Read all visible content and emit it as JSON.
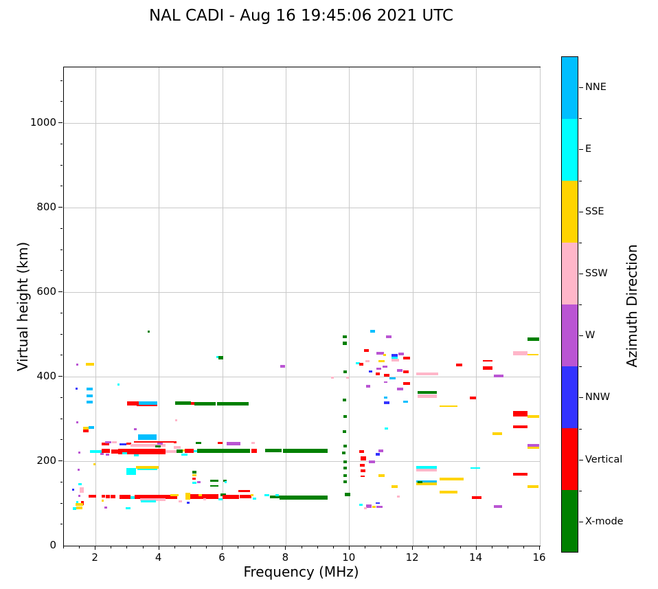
{
  "figure": {
    "title": "NAL CADI - Aug 16 19:45:06 2021 UTC"
  },
  "chart_data": {
    "type": "scatter",
    "title": "NAL CADI - Aug 16 19:45:06 2021 UTC",
    "xlabel": "Frequency (MHz)",
    "ylabel": "Virtual height (km)",
    "xlim": [
      1,
      16
    ],
    "ylim": [
      0,
      1131
    ],
    "xticks": [
      2,
      4,
      6,
      8,
      10,
      12,
      14,
      16
    ],
    "yticks": [
      0,
      200,
      400,
      600,
      800,
      1000
    ],
    "x_minor_step": 0.5,
    "y_minor_step": 50,
    "grid": true,
    "grid_color": "#c9c9c9",
    "colors": {
      "nne": "#00BFFF",
      "e": "#00FFFF",
      "sse": "#FFD400",
      "ssw": "#FFB6C9",
      "w": "#BA55D3",
      "nnw": "#3333FF",
      "v": "#FF0000",
      "x": "#008000"
    },
    "colorbar": {
      "label": "Azimuth Direction",
      "categories": [
        {
          "label": "NNE",
          "key": "nne",
          "color": "#00BFFF"
        },
        {
          "label": "E",
          "key": "e",
          "color": "#00FFFF"
        },
        {
          "label": "SSE",
          "key": "sse",
          "color": "#FFD400"
        },
        {
          "label": "SSW",
          "key": "ssw",
          "color": "#FFB6C9"
        },
        {
          "label": "W",
          "key": "w",
          "color": "#BA55D3"
        },
        {
          "label": "NNW",
          "key": "nnw",
          "color": "#3333FF"
        },
        {
          "label": "Vertical",
          "key": "v",
          "color": "#FF0000"
        },
        {
          "label": "X-mode",
          "key": "x",
          "color": "#008000"
        }
      ]
    },
    "points_format": [
      "freq_start_MHz",
      "freq_end_MHz",
      "virtual_height_km",
      "azimuth_key",
      "thickness_px"
    ],
    "points": [
      [
        1.4,
        1.46,
        428,
        "w",
        3
      ],
      [
        1.7,
        1.95,
        429,
        "sse",
        4
      ],
      [
        1.37,
        1.43,
        371,
        "nnw",
        3
      ],
      [
        1.72,
        1.92,
        370,
        "nne",
        4
      ],
      [
        1.72,
        1.92,
        355,
        "nne",
        4
      ],
      [
        1.72,
        1.92,
        340,
        "nne",
        4
      ],
      [
        1.4,
        1.46,
        292,
        "w",
        3
      ],
      [
        1.6,
        1.78,
        278,
        "sse",
        4
      ],
      [
        1.6,
        1.78,
        272,
        "v",
        4
      ],
      [
        1.78,
        1.96,
        280,
        "nne",
        4
      ],
      [
        1.46,
        1.52,
        221,
        "w",
        3
      ],
      [
        1.92,
        1.98,
        193,
        "sse",
        3
      ],
      [
        1.43,
        1.5,
        180,
        "w",
        3
      ],
      [
        1.46,
        1.56,
        146,
        "e",
        3
      ],
      [
        1.26,
        1.33,
        133,
        "nnw",
        3
      ],
      [
        1.5,
        1.62,
        131,
        "ssw",
        8
      ],
      [
        1.55,
        1.63,
        101,
        "v",
        6
      ],
      [
        1.36,
        1.6,
        97,
        "sse",
        4
      ],
      [
        1.4,
        1.58,
        90,
        "sse",
        4
      ],
      [
        1.28,
        1.4,
        88,
        "e",
        4
      ],
      [
        1.46,
        1.52,
        118,
        "w",
        3
      ],
      [
        1.38,
        1.46,
        104,
        "e",
        3
      ],
      [
        1.78,
        2.02,
        117,
        "v",
        4
      ],
      [
        2.18,
        2.3,
        117,
        "v",
        4
      ],
      [
        2.33,
        2.44,
        117,
        "v",
        5
      ],
      [
        2.47,
        2.62,
        116,
        "v",
        5
      ],
      [
        2.2,
        2.26,
        107,
        "sse",
        3
      ],
      [
        2.28,
        2.36,
        90,
        "w",
        3
      ],
      [
        2.75,
        3.1,
        116,
        "v",
        6
      ],
      [
        2.95,
        3.1,
        89,
        "e",
        3
      ],
      [
        3.1,
        3.24,
        114,
        "e",
        4
      ],
      [
        3.24,
        4.2,
        116,
        "v",
        6
      ],
      [
        3.4,
        4.2,
        109,
        "ssw",
        4
      ],
      [
        3.42,
        3.9,
        105,
        "e",
        3
      ],
      [
        4.2,
        4.58,
        115,
        "v",
        6
      ],
      [
        4.35,
        4.62,
        120,
        "sse",
        3
      ],
      [
        4.62,
        4.72,
        105,
        "ssw",
        3
      ],
      [
        4.84,
        4.98,
        117,
        "sse",
        10
      ],
      [
        4.88,
        4.96,
        102,
        "nnw",
        3
      ],
      [
        4.98,
        5.88,
        116,
        "v",
        7
      ],
      [
        5.25,
        5.36,
        120,
        "sse",
        3
      ],
      [
        5.4,
        5.48,
        109,
        "ssw",
        3
      ],
      [
        5.88,
        6.0,
        110,
        "e",
        3
      ],
      [
        5.94,
        6.1,
        120,
        "x",
        4
      ],
      [
        6.0,
        6.52,
        116,
        "v",
        6
      ],
      [
        6.55,
        6.9,
        116,
        "v",
        5
      ],
      [
        6.5,
        6.86,
        129,
        "v",
        3
      ],
      [
        6.88,
        6.98,
        120,
        "sse",
        3
      ],
      [
        6.95,
        7.06,
        112,
        "e",
        3
      ],
      [
        7.32,
        7.48,
        119,
        "e",
        3
      ],
      [
        7.5,
        7.9,
        115,
        "x",
        4
      ],
      [
        7.67,
        7.78,
        120,
        "e",
        3
      ],
      [
        7.8,
        9.32,
        114,
        "x",
        6
      ],
      [
        1.83,
        2.18,
        222,
        "e",
        4
      ],
      [
        2.2,
        2.46,
        224,
        "v",
        6
      ],
      [
        2.5,
        2.72,
        223,
        "v",
        6
      ],
      [
        2.72,
        4.2,
        223,
        "v",
        8
      ],
      [
        2.85,
        3.0,
        219,
        "e",
        3
      ],
      [
        4.2,
        4.62,
        222,
        "ssw",
        4
      ],
      [
        2.15,
        2.25,
        217,
        "w",
        3
      ],
      [
        2.33,
        2.42,
        216,
        "w",
        3
      ],
      [
        3.2,
        3.35,
        214,
        "e",
        3
      ],
      [
        4.7,
        4.9,
        216,
        "e",
        3
      ],
      [
        4.47,
        4.67,
        232,
        "ssw",
        4
      ],
      [
        4.47,
        4.55,
        245,
        "v",
        3
      ],
      [
        4.55,
        4.74,
        224,
        "x",
        5
      ],
      [
        4.74,
        4.8,
        225,
        "sse",
        3
      ],
      [
        4.8,
        5.1,
        224,
        "v",
        6
      ],
      [
        5.1,
        5.2,
        224,
        "e",
        3
      ],
      [
        5.2,
        5.8,
        224,
        "x",
        6
      ],
      [
        5.8,
        6.86,
        224,
        "x",
        6
      ],
      [
        6.9,
        7.08,
        225,
        "v",
        6
      ],
      [
        7.35,
        7.86,
        225,
        "x",
        5
      ],
      [
        7.9,
        9.32,
        224,
        "x",
        6
      ],
      [
        2.2,
        2.42,
        240,
        "v",
        4
      ],
      [
        2.3,
        2.5,
        244,
        "w",
        3
      ],
      [
        2.52,
        2.66,
        245,
        "ssw",
        3
      ],
      [
        2.76,
        2.96,
        240,
        "nnw",
        3
      ],
      [
        2.96,
        3.12,
        241,
        "v",
        3
      ],
      [
        3.1,
        4.2,
        238,
        "ssw",
        4
      ],
      [
        3.95,
        4.12,
        241,
        "w",
        3
      ],
      [
        3.88,
        4.05,
        235,
        "x",
        3
      ],
      [
        5.16,
        5.32,
        243,
        "x",
        3
      ],
      [
        5.84,
        6.0,
        243,
        "v",
        3
      ],
      [
        6.14,
        6.56,
        241,
        "w",
        5
      ],
      [
        6.9,
        7.02,
        243,
        "ssw",
        3
      ],
      [
        3.34,
        3.92,
        257,
        "nne",
        8
      ],
      [
        3.2,
        4.5,
        246,
        "v",
        2
      ],
      [
        3.2,
        3.3,
        275,
        "w",
        3
      ],
      [
        4.5,
        4.58,
        296,
        "ssw",
        3
      ],
      [
        3.0,
        3.35,
        336,
        "v",
        6
      ],
      [
        3.35,
        3.95,
        336,
        "nne",
        6
      ],
      [
        3.3,
        3.95,
        331,
        "v",
        2
      ],
      [
        4.5,
        5.0,
        337,
        "x",
        5
      ],
      [
        5.0,
        5.12,
        337,
        "v",
        4
      ],
      [
        5.12,
        5.78,
        336,
        "x",
        5
      ],
      [
        5.82,
        6.2,
        336,
        "x",
        5
      ],
      [
        6.2,
        6.82,
        335,
        "x",
        5
      ],
      [
        2.68,
        2.75,
        382,
        "e",
        3
      ],
      [
        3.63,
        3.71,
        507,
        "x",
        3
      ],
      [
        2.96,
        3.28,
        176,
        "e",
        10
      ],
      [
        3.28,
        3.98,
        186,
        "sse",
        4
      ],
      [
        3.32,
        3.95,
        181,
        "e",
        2
      ],
      [
        5.05,
        5.18,
        174,
        "x",
        4
      ],
      [
        5.05,
        5.18,
        166,
        "sse",
        3
      ],
      [
        5.05,
        5.16,
        159,
        "v",
        3
      ],
      [
        5.05,
        5.18,
        149,
        "e",
        3
      ],
      [
        5.2,
        5.3,
        151,
        "w",
        3
      ],
      [
        5.6,
        5.88,
        154,
        "x",
        3
      ],
      [
        6.02,
        6.12,
        154,
        "x",
        3
      ],
      [
        6.06,
        6.14,
        150,
        "e",
        3
      ],
      [
        5.6,
        5.88,
        142,
        "x",
        2
      ],
      [
        5.8,
        5.87,
        446,
        "e",
        3
      ],
      [
        5.87,
        6.03,
        445,
        "x",
        5
      ],
      [
        7.82,
        7.96,
        425,
        "w",
        4
      ],
      [
        9.78,
        9.92,
        494,
        "x",
        4
      ],
      [
        9.78,
        9.92,
        479,
        "x",
        5
      ],
      [
        9.8,
        9.92,
        412,
        "x",
        4
      ],
      [
        9.9,
        9.99,
        398,
        "ssw",
        3
      ],
      [
        9.42,
        9.5,
        398,
        "ssw",
        3
      ],
      [
        9.78,
        9.9,
        345,
        "x",
        4
      ],
      [
        9.8,
        9.92,
        305,
        "x",
        4
      ],
      [
        9.78,
        9.9,
        270,
        "x",
        4
      ],
      [
        9.8,
        9.92,
        236,
        "x",
        4
      ],
      [
        9.77,
        9.88,
        220,
        "x",
        4
      ],
      [
        9.8,
        9.92,
        199,
        "x",
        4
      ],
      [
        9.8,
        9.92,
        184,
        "x",
        4
      ],
      [
        9.82,
        9.92,
        166,
        "x",
        4
      ],
      [
        9.82,
        9.92,
        151,
        "x",
        4
      ],
      [
        9.85,
        10.02,
        121,
        "x",
        5
      ],
      [
        10.3,
        10.45,
        222,
        "v",
        4
      ],
      [
        10.35,
        10.52,
        207,
        "v",
        6
      ],
      [
        10.32,
        10.47,
        191,
        "v",
        4
      ],
      [
        10.35,
        10.5,
        178,
        "v",
        4
      ],
      [
        10.36,
        10.48,
        164,
        "v",
        2
      ],
      [
        10.2,
        10.32,
        431,
        "e",
        3
      ],
      [
        10.3,
        10.44,
        430,
        "v",
        4
      ],
      [
        10.45,
        10.6,
        462,
        "v",
        4
      ],
      [
        10.65,
        10.8,
        507,
        "nne",
        4
      ],
      [
        11.15,
        11.32,
        494,
        "w",
        4
      ],
      [
        10.85,
        11.08,
        455,
        "w",
        4
      ],
      [
        11.06,
        11.16,
        452,
        "sse",
        3
      ],
      [
        11.32,
        11.52,
        450,
        "nnw",
        4
      ],
      [
        11.32,
        11.52,
        444,
        "e",
        3
      ],
      [
        11.32,
        11.56,
        439,
        "ssw",
        4
      ],
      [
        11.55,
        11.72,
        453,
        "w",
        4
      ],
      [
        11.7,
        11.9,
        444,
        "v",
        4
      ],
      [
        10.5,
        10.64,
        437,
        "ssw",
        3
      ],
      [
        10.92,
        11.1,
        437,
        "sse",
        3
      ],
      [
        11.05,
        11.2,
        423,
        "w",
        3
      ],
      [
        11.5,
        11.68,
        415,
        "w",
        4
      ],
      [
        11.7,
        11.86,
        412,
        "v",
        4
      ],
      [
        11.08,
        11.25,
        403,
        "v",
        4
      ],
      [
        11.25,
        11.45,
        396,
        "nne",
        3
      ],
      [
        11.08,
        11.2,
        387,
        "w",
        2
      ],
      [
        11.7,
        11.9,
        383,
        "v",
        4
      ],
      [
        11.5,
        11.7,
        370,
        "w",
        4
      ],
      [
        11.08,
        11.2,
        351,
        "nne",
        3
      ],
      [
        11.08,
        11.25,
        338,
        "nnw",
        4
      ],
      [
        11.7,
        11.85,
        340,
        "nne",
        3
      ],
      [
        11.1,
        11.22,
        278,
        "e",
        3
      ],
      [
        10.52,
        10.66,
        378,
        "w",
        4
      ],
      [
        10.85,
        11.0,
        418,
        "w",
        3
      ],
      [
        10.82,
        10.96,
        407,
        "v",
        4
      ],
      [
        10.6,
        10.72,
        413,
        "nnw",
        3
      ],
      [
        10.82,
        10.96,
        217,
        "nnw",
        4
      ],
      [
        10.92,
        11.06,
        224,
        "w",
        4
      ],
      [
        10.62,
        10.8,
        198,
        "w",
        4
      ],
      [
        10.92,
        11.1,
        166,
        "sse",
        4
      ],
      [
        11.32,
        11.52,
        140,
        "sse",
        4
      ],
      [
        11.5,
        11.58,
        116,
        "ssw",
        3
      ],
      [
        10.82,
        10.96,
        101,
        "nnw",
        2
      ],
      [
        10.52,
        10.7,
        93,
        "w",
        5
      ],
      [
        10.72,
        10.82,
        92,
        "sse",
        3
      ],
      [
        10.85,
        11.05,
        92,
        "w",
        3
      ],
      [
        10.3,
        10.42,
        96,
        "e",
        3
      ],
      [
        10.45,
        10.55,
        88,
        "ssw",
        3
      ],
      [
        12.1,
        12.8,
        406,
        "ssw",
        4
      ],
      [
        12.15,
        12.75,
        362,
        "x",
        4
      ],
      [
        12.15,
        12.75,
        354,
        "ssw",
        5
      ],
      [
        12.85,
        13.4,
        330,
        "sse",
        2
      ],
      [
        13.35,
        13.55,
        427,
        "v",
        4
      ],
      [
        14.2,
        14.5,
        437,
        "v",
        2
      ],
      [
        14.2,
        14.5,
        420,
        "v",
        5
      ],
      [
        14.55,
        14.85,
        402,
        "w",
        4
      ],
      [
        13.8,
        13.98,
        349,
        "v",
        4
      ],
      [
        14.5,
        14.8,
        265,
        "sse",
        4
      ],
      [
        15.15,
        15.6,
        313,
        "v",
        8
      ],
      [
        15.6,
        15.98,
        306,
        "sse",
        4
      ],
      [
        15.15,
        15.6,
        282,
        "v",
        4
      ],
      [
        15.6,
        15.98,
        238,
        "w",
        4
      ],
      [
        15.6,
        15.98,
        232,
        "sse",
        3
      ],
      [
        15.6,
        15.98,
        489,
        "x",
        5
      ],
      [
        15.15,
        15.6,
        456,
        "ssw",
        6
      ],
      [
        15.6,
        15.95,
        452,
        "sse",
        2
      ],
      [
        12.1,
        12.75,
        185,
        "e",
        4
      ],
      [
        12.1,
        12.75,
        179,
        "ssw",
        4
      ],
      [
        12.1,
        12.75,
        152,
        "nne",
        4
      ],
      [
        12.1,
        12.75,
        146,
        "sse",
        4
      ],
      [
        12.85,
        13.6,
        158,
        "sse",
        4
      ],
      [
        12.85,
        13.4,
        127,
        "sse",
        4
      ],
      [
        13.85,
        14.15,
        114,
        "v",
        4
      ],
      [
        14.55,
        14.8,
        92,
        "w",
        4
      ],
      [
        15.15,
        15.6,
        169,
        "v",
        4
      ],
      [
        15.6,
        15.95,
        140,
        "sse",
        4
      ],
      [
        13.82,
        14.12,
        183,
        "e",
        2
      ],
      [
        12.15,
        12.3,
        150,
        "x",
        3
      ]
    ]
  }
}
